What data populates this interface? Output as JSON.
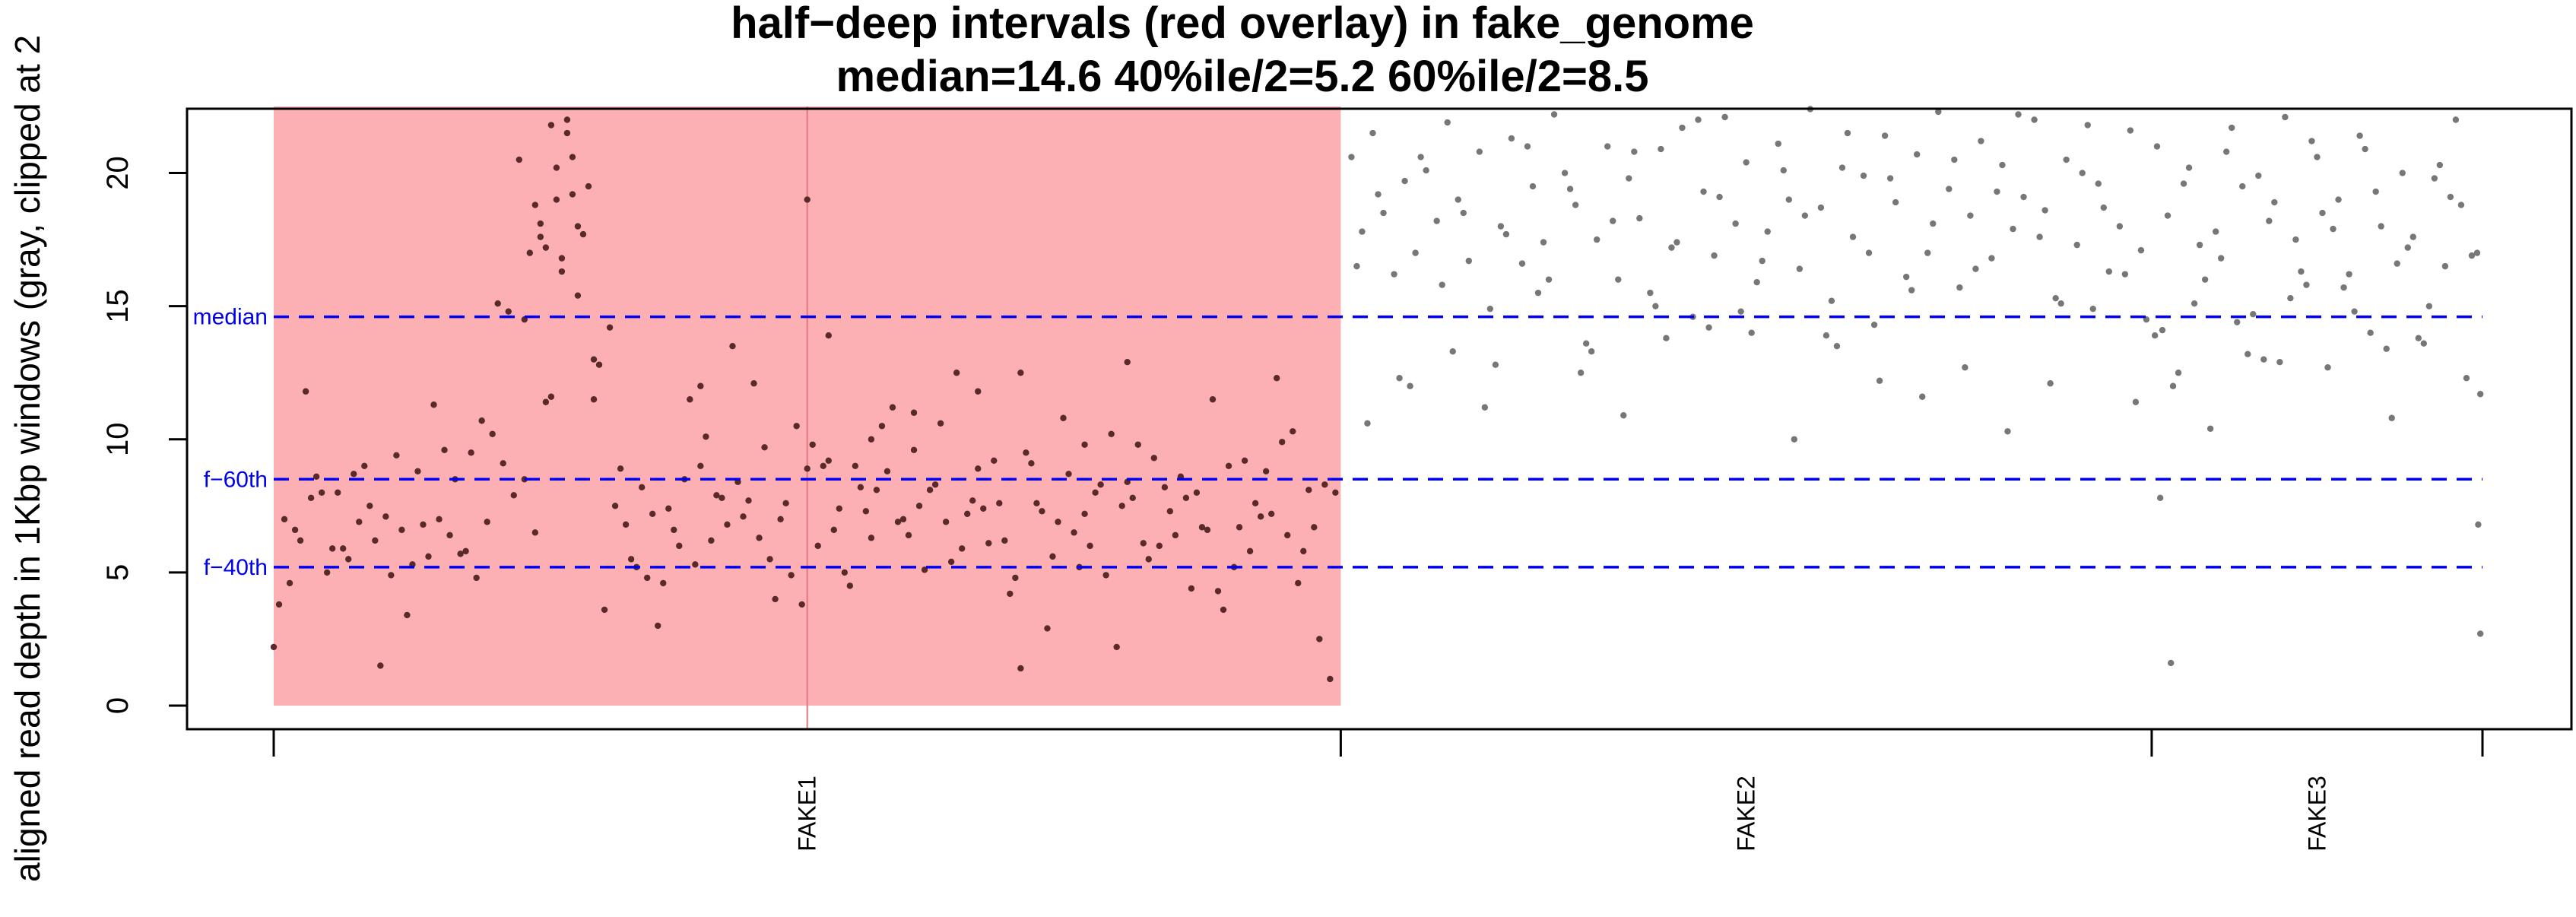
{
  "chart_data": {
    "type": "scatter",
    "title": "half−deep intervals (red overlay) in fake_genome",
    "subtitle": "median=14.6   40%ile/2=5.2   60%ile/2=8.5",
    "ylabel": "aligned read depth in 1Kbp windows (gray, clipped at 2",
    "xlabel": "",
    "ylim": [
      0,
      22.5
    ],
    "yticks": [
      0,
      5,
      10,
      15,
      20
    ],
    "grid": false,
    "legend": "none",
    "point_color": "#777777",
    "overlay_point_color": "#5a2a2a",
    "overlay_color": "#fdb0b4",
    "refline_color": "#0000ee",
    "chromosomes": [
      {
        "name": "FAKE1",
        "start": 0,
        "end": 1.0
      },
      {
        "name": "FAKE2",
        "start": 1.0,
        "end": 1.76
      },
      {
        "name": "FAKE3",
        "start": 1.76,
        "end": 2.07
      }
    ],
    "x_boundaries": [
      0,
      1.0,
      1.76,
      2.07
    ],
    "red_overlay": {
      "x_start": 0,
      "x_end": 1.0,
      "y_min": 0,
      "y_max": 22.5
    },
    "reference_lines": [
      {
        "label": "median",
        "value": 14.6
      },
      {
        "label": "f−60th",
        "value": 8.5
      },
      {
        "label": "f−40th",
        "value": 5.2
      }
    ],
    "series": [
      {
        "x": [
          0.0,
          0.01,
          0.02,
          0.03,
          0.04,
          0.05,
          0.06,
          0.07,
          0.08,
          0.09,
          0.1,
          0.11,
          0.12,
          0.13,
          0.14,
          0.15,
          0.16,
          0.17,
          0.18,
          0.19,
          0.2,
          0.21,
          0.22,
          0.23,
          0.24,
          0.25,
          0.26,
          0.27,
          0.28,
          0.29,
          0.3,
          0.31,
          0.32,
          0.33,
          0.34,
          0.35,
          0.36,
          0.37,
          0.38,
          0.39,
          0.4,
          0.41,
          0.42,
          0.43,
          0.44,
          0.45,
          0.46,
          0.47,
          0.48,
          0.49,
          0.5,
          0.51,
          0.52,
          0.53,
          0.54,
          0.55,
          0.56,
          0.57,
          0.58,
          0.59,
          0.6,
          0.61,
          0.62,
          0.63,
          0.64,
          0.65,
          0.66,
          0.67,
          0.68,
          0.69,
          0.7,
          0.71,
          0.72,
          0.73,
          0.74,
          0.75,
          0.76,
          0.77,
          0.78,
          0.79,
          0.8,
          0.81,
          0.82,
          0.83,
          0.84,
          0.85,
          0.86,
          0.87,
          0.88,
          0.89,
          0.9,
          0.91,
          0.92,
          0.93,
          0.94,
          0.95,
          0.96,
          0.97,
          0.98,
          0.99,
          0.005,
          0.025,
          0.045,
          0.065,
          0.085,
          0.105,
          0.125,
          0.145,
          0.165,
          0.185,
          0.205,
          0.225,
          0.245,
          0.265,
          0.285,
          0.305,
          0.325,
          0.345,
          0.365,
          0.385,
          0.405,
          0.425,
          0.445,
          0.465,
          0.485,
          0.505,
          0.525,
          0.545,
          0.565,
          0.585,
          0.605,
          0.625,
          0.645,
          0.665,
          0.685,
          0.705,
          0.725,
          0.745,
          0.765,
          0.785,
          0.805,
          0.825,
          0.845,
          0.865,
          0.885,
          0.905,
          0.925,
          0.945,
          0.965,
          0.985,
          0.015,
          0.035,
          0.055,
          0.075,
          0.095,
          0.115,
          0.135,
          0.155,
          0.175,
          0.195,
          0.215,
          0.235,
          0.255,
          0.275,
          0.295,
          0.315,
          0.335,
          0.355,
          0.375,
          0.395,
          0.415,
          0.435,
          0.455,
          0.475,
          0.495,
          0.515,
          0.535,
          0.555,
          0.575,
          0.595,
          0.615,
          0.635,
          0.655,
          0.675,
          0.695,
          0.715,
          0.735,
          0.755,
          0.775,
          0.795,
          0.815,
          0.835,
          0.855,
          0.875,
          0.895,
          0.915,
          0.935,
          0.955,
          0.975,
          0.995,
          0.245,
          0.255,
          0.265,
          0.275,
          0.285,
          0.235,
          0.27,
          0.28,
          0.25,
          0.26,
          0.5,
          0.3,
          0.4,
          0.6,
          0.7,
          0.8,
          0.52,
          0.56,
          0.66,
          0.76
        ],
        "y": [
          2.2,
          7.0,
          6.6,
          11.8,
          8.6,
          5.0,
          8.0,
          5.5,
          6.9,
          7.5,
          1.5,
          4.9,
          6.6,
          5.3,
          6.8,
          11.3,
          9.6,
          8.5,
          5.8,
          4.8,
          6.9,
          15.1,
          14.8,
          20.5,
          17.0,
          18.1,
          21.8,
          16.3,
          20.6,
          17.7,
          13.0,
          3.6,
          7.5,
          6.8,
          5.2,
          4.8,
          3.0,
          7.4,
          6.0,
          11.5,
          9.0,
          6.2,
          7.8,
          13.5,
          7.1,
          12.1,
          9.7,
          4.0,
          7.6,
          10.5,
          8.9,
          6.0,
          9.2,
          7.4,
          4.5,
          8.2,
          6.3,
          10.5,
          11.2,
          7.0,
          9.6,
          5.1,
          8.3,
          6.9,
          12.5,
          7.2,
          8.9,
          6.1,
          7.6,
          4.2,
          1.4,
          9.1,
          7.3,
          5.6,
          10.8,
          6.5,
          7.2,
          8.0,
          4.9,
          2.2,
          8.4,
          9.8,
          5.5,
          6.0,
          7.3,
          8.6,
          4.4,
          6.7,
          11.5,
          3.6,
          5.2,
          9.2,
          7.6,
          8.8,
          12.3,
          6.4,
          4.6,
          8.1,
          2.5,
          1.0,
          3.8,
          6.2,
          8.0,
          5.9,
          9.0,
          7.1,
          3.4,
          5.6,
          6.4,
          9.5,
          10.2,
          7.9,
          6.5,
          19.0,
          18.0,
          12.8,
          8.9,
          8.2,
          4.6,
          8.5,
          10.1,
          6.8,
          7.7,
          5.5,
          4.9,
          9.8,
          6.6,
          9.0,
          8.1,
          6.9,
          7.5,
          10.6,
          5.9,
          7.4,
          6.2,
          9.5,
          2.9,
          8.7,
          6.0,
          10.2,
          7.8,
          9.3,
          6.4,
          8.0,
          4.3,
          6.7,
          7.1,
          9.9,
          5.8,
          8.3,
          4.6,
          7.8,
          5.9,
          8.7,
          6.2,
          9.4,
          8.8,
          7.0,
          5.7,
          10.7,
          9.1,
          8.5,
          11.4,
          22.0,
          19.5,
          14.2,
          5.5,
          7.2,
          6.6,
          5.3,
          7.9,
          8.4,
          6.3,
          7.0,
          3.8,
          9.0,
          5.0,
          7.3,
          8.8,
          6.4,
          8.1,
          5.4,
          7.7,
          9.2,
          4.8,
          7.6,
          6.9,
          5.2,
          8.3,
          7.5,
          6.1,
          8.2,
          7.8,
          6.6,
          9.0,
          5.8,
          7.2,
          10.3,
          6.7,
          8.0,
          18.8,
          17.2,
          20.2,
          21.5,
          15.4,
          14.5,
          16.8,
          19.2,
          17.6,
          11.6,
          19.0,
          11.5,
          12.0,
          11.0,
          12.5,
          12.9,
          13.9,
          10.0,
          11.8,
          9.8
        ],
        "in_overlay": true
      },
      {
        "x": [
          1.01,
          1.02,
          1.03,
          1.04,
          1.05,
          1.06,
          1.07,
          1.08,
          1.09,
          1.1,
          1.11,
          1.12,
          1.13,
          1.14,
          1.15,
          1.16,
          1.17,
          1.18,
          1.19,
          1.2,
          1.21,
          1.22,
          1.23,
          1.24,
          1.25,
          1.26,
          1.27,
          1.28,
          1.29,
          1.3,
          1.31,
          1.32,
          1.33,
          1.34,
          1.35,
          1.36,
          1.37,
          1.38,
          1.39,
          1.4,
          1.41,
          1.42,
          1.43,
          1.44,
          1.45,
          1.46,
          1.47,
          1.48,
          1.49,
          1.5,
          1.51,
          1.52,
          1.53,
          1.54,
          1.55,
          1.56,
          1.57,
          1.58,
          1.59,
          1.6,
          1.61,
          1.62,
          1.63,
          1.64,
          1.65,
          1.66,
          1.67,
          1.68,
          1.69,
          1.7,
          1.71,
          1.72,
          1.73,
          1.74,
          1.75,
          1.015,
          1.035,
          1.055,
          1.075,
          1.095,
          1.115,
          1.135,
          1.155,
          1.175,
          1.195,
          1.215,
          1.235,
          1.255,
          1.275,
          1.295,
          1.315,
          1.335,
          1.355,
          1.375,
          1.395,
          1.415,
          1.435,
          1.455,
          1.475,
          1.495,
          1.515,
          1.535,
          1.555,
          1.575,
          1.595,
          1.615,
          1.635,
          1.655,
          1.675,
          1.695,
          1.715,
          1.735,
          1.755,
          1.025,
          1.065,
          1.105,
          1.145,
          1.185,
          1.225,
          1.265,
          1.305,
          1.345,
          1.385,
          1.425,
          1.465,
          1.505,
          1.545,
          1.585,
          1.625,
          1.665,
          1.705,
          1.745
        ],
        "y": [
          20.6,
          17.8,
          21.5,
          18.5,
          16.2,
          19.7,
          17.0,
          20.1,
          18.2,
          21.9,
          19.0,
          16.7,
          20.8,
          14.9,
          18.0,
          21.3,
          16.6,
          19.5,
          17.4,
          22.2,
          20.0,
          18.8,
          13.6,
          17.5,
          21.0,
          16.0,
          19.8,
          18.3,
          15.5,
          20.9,
          17.2,
          21.7,
          14.6,
          19.3,
          16.9,
          22.1,
          18.1,
          20.4,
          15.9,
          17.8,
          21.1,
          19.0,
          16.4,
          22.4,
          18.7,
          15.2,
          20.2,
          17.6,
          19.9,
          14.3,
          21.4,
          18.9,
          16.1,
          20.7,
          17.0,
          22.3,
          19.4,
          15.7,
          18.4,
          21.2,
          16.8,
          20.3,
          17.9,
          19.1,
          22.0,
          18.6,
          15.3,
          20.5,
          17.3,
          21.8,
          19.6,
          16.3,
          18.0,
          21.6,
          17.1,
          16.5,
          19.2,
          12.3,
          20.6,
          15.8,
          18.5,
          11.2,
          17.7,
          21.0,
          16.0,
          19.4,
          13.3,
          18.2,
          20.8,
          15.0,
          17.4,
          22.0,
          19.1,
          14.8,
          16.7,
          20.1,
          18.4,
          13.9,
          21.5,
          17.0,
          19.8,
          15.6,
          18.1,
          20.5,
          16.4,
          19.3,
          22.2,
          17.6,
          15.1,
          20.0,
          18.7,
          16.2,
          14.5,
          10.6,
          12.0,
          13.3,
          12.8,
          15.5,
          12.5,
          10.9,
          13.8,
          14.2,
          14.0,
          10.0,
          13.5,
          12.2,
          11.6,
          12.7,
          10.3,
          12.1,
          14.9,
          11.4
        ],
        "in_overlay": false
      },
      {
        "x": [
          1.765,
          1.775,
          1.785,
          1.795,
          1.805,
          1.815,
          1.825,
          1.835,
          1.845,
          1.855,
          1.865,
          1.875,
          1.885,
          1.895,
          1.905,
          1.915,
          1.925,
          1.935,
          1.945,
          1.955,
          1.965,
          1.975,
          1.985,
          1.995,
          2.005,
          2.015,
          2.025,
          2.035,
          2.045,
          2.055,
          2.065,
          1.77,
          1.79,
          1.81,
          1.83,
          1.85,
          1.87,
          1.89,
          1.91,
          1.93,
          1.95,
          1.97,
          1.99,
          2.01,
          2.03,
          2.05,
          2.068,
          1.78,
          1.8,
          1.82,
          1.84,
          1.86,
          1.88,
          1.9,
          1.92,
          1.94,
          1.96,
          1.98,
          2.0,
          2.02,
          2.04,
          2.06,
          1.763,
          1.768,
          1.778,
          2.066,
          2.068
        ],
        "y": [
          21.0,
          18.4,
          12.5,
          20.2,
          17.3,
          10.4,
          16.8,
          21.7,
          19.5,
          14.7,
          13.0,
          18.9,
          22.1,
          17.5,
          15.8,
          20.6,
          12.7,
          19.0,
          16.2,
          21.4,
          14.0,
          18.0,
          10.8,
          20.0,
          17.6,
          13.6,
          19.8,
          16.5,
          22.0,
          12.3,
          17.0,
          14.1,
          19.6,
          16.0,
          20.8,
          13.2,
          18.2,
          15.3,
          21.2,
          17.9,
          14.8,
          19.3,
          16.6,
          13.8,
          20.3,
          18.8,
          11.7,
          12.0,
          15.1,
          17.8,
          14.4,
          19.9,
          12.9,
          16.3,
          18.5,
          15.7,
          20.9,
          13.4,
          17.2,
          15.0,
          19.1,
          16.9,
          13.9,
          7.8,
          1.6,
          6.8,
          2.7
        ],
        "in_overlay": false
      }
    ]
  }
}
